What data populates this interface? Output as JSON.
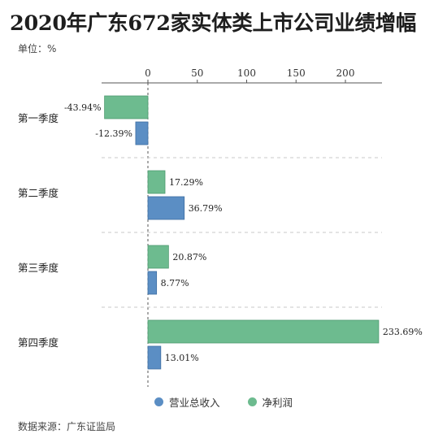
{
  "title": "2020年广东672家实体类上市公司业绩增幅",
  "unit_label": "单位：%",
  "source_label": "数据来源：广东证监局",
  "colors": {
    "revenue": "#5b8ec4",
    "revenue_stroke": "#3e6fa3",
    "profit": "#6dbb8f",
    "profit_stroke": "#4e9a70",
    "axis": "#555555",
    "divider": "#c8c8c8"
  },
  "chart_data": {
    "type": "bar",
    "orientation": "horizontal",
    "categories": [
      "第一季度",
      "第二季度",
      "第三季度",
      "第四季度"
    ],
    "series": [
      {
        "name": "净利润",
        "values": [
          -43.94,
          17.29,
          20.87,
          233.69
        ],
        "labels": [
          "-43.94%",
          "17.29%",
          "20.87%",
          "233.69%"
        ]
      },
      {
        "name": "营业总收入",
        "values": [
          -12.39,
          36.79,
          8.77,
          13.01
        ],
        "labels": [
          "-12.39%",
          "36.79%",
          "8.77%",
          "13.01%"
        ]
      }
    ],
    "xlim": [
      -45,
      240
    ],
    "xticks": [
      0,
      50,
      100,
      150,
      200
    ],
    "legend": [
      "营业总收入",
      "净利润"
    ],
    "legend_position": "bottom"
  }
}
